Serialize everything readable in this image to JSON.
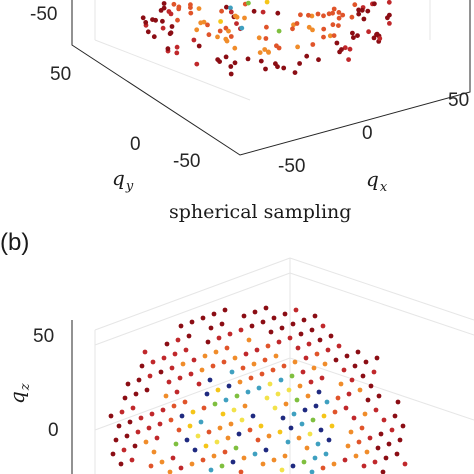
{
  "chart_data": [
    {
      "type": "scatter",
      "subtype": "3d-scatter",
      "panel": "a",
      "title": "spherical sampling",
      "xlabel": "q_x",
      "ylabel": "q_y",
      "axes": {
        "x_ticks": [
          "-50",
          "0",
          "50"
        ],
        "y_ticks": [
          "-50",
          "0",
          "50"
        ],
        "z_ticks": [
          "-50"
        ]
      },
      "grid": true,
      "sampling": "spherical",
      "point_colors": [
        "#8b0d14",
        "#c0282b",
        "#e0542a",
        "#f08c2a",
        "#f5c518",
        "#7fbf3f",
        "#3fa0c0"
      ]
    },
    {
      "type": "scatter",
      "subtype": "3d-scatter",
      "panel": "b",
      "zlabel": "q_z",
      "axes": {
        "z_ticks": [
          "50",
          "0"
        ]
      },
      "grid": true,
      "sampling": "lattice",
      "point_colors": [
        "#8b0d14",
        "#c0282b",
        "#e0542a",
        "#f08c2a",
        "#f5c518",
        "#f2e24a",
        "#7fbf3f",
        "#3fa0c0",
        "#1f2a80"
      ]
    }
  ],
  "panel_label_b": "(b)"
}
